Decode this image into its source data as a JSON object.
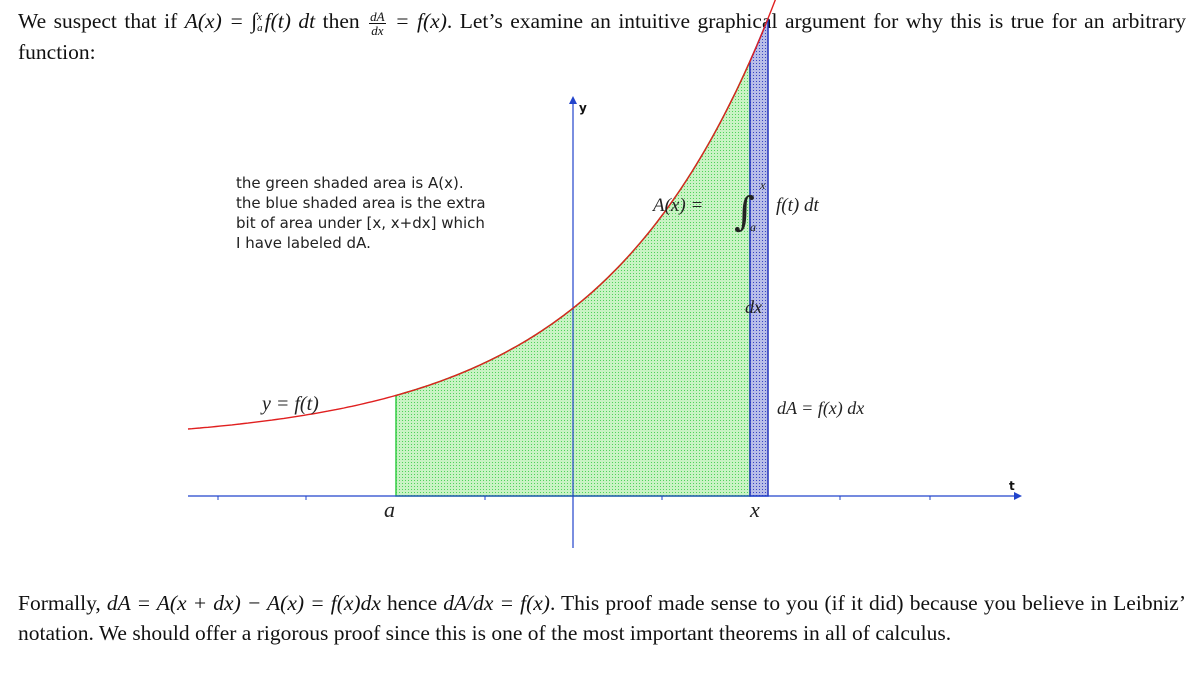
{
  "intro": {
    "p1": "We suspect that if ",
    "Ax": "A(x) = ",
    "int_upper": "x",
    "int_lower": "a",
    "integrand": "f(t) dt",
    "then": " then ",
    "frac_num": "dA",
    "frac_den": "dx",
    "eq_fx": " = f(x)",
    "p2": ". Let’s examine an intuitive graphical argument for why this is true for an arbitrary function:"
  },
  "figure": {
    "note_lines": [
      "the green shaded area is A(x).",
      "the blue shaded area is the extra",
      "bit of area under [x, x+dx] which",
      "I have labeled dA."
    ],
    "integral_lhs": "A(x) =",
    "integral_upper": "x",
    "integral_lower": "a",
    "integral_rhs": "f(t) dt",
    "curve_label": "y = f(t)",
    "dx_label": "dx",
    "dA_label": "dA = f(x) dx",
    "axis_y": "y",
    "axis_t": "t",
    "tick_a": "a",
    "tick_x": "x",
    "colors": {
      "curve": "#e02020",
      "green": "#33cc44",
      "blue": "#2233bb",
      "axis": "#2244cc"
    }
  },
  "formal": {
    "text_a": "Formally, ",
    "eq": "dA = A(x + dx) − A(x) = f(x)dx",
    "hence": " hence ",
    "eq2": "dA/dx = f(x)",
    "text_b": ". This proof made sense to you (if it did) because you believe in Leibniz’ notation. We should offer a rigorous proof since this is one of the most important theorems in all of calculus."
  }
}
